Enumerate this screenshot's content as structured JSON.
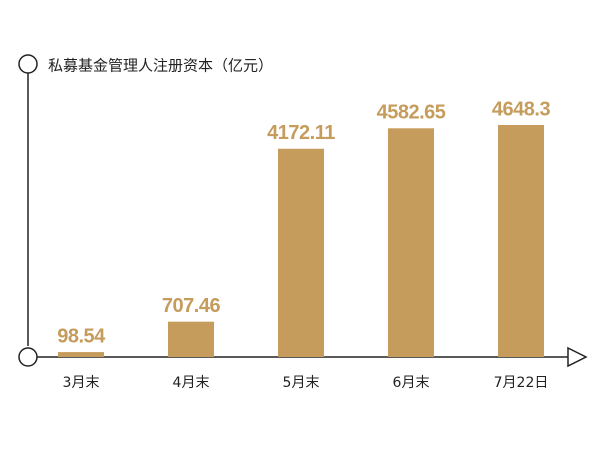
{
  "chart_data": {
    "type": "bar",
    "title": "私募基金管理人注册资本（亿元）",
    "categories": [
      "3月末",
      "4月末",
      "5月末",
      "6月末",
      "7月22日"
    ],
    "values": [
      98.54,
      707.46,
      4172.11,
      4582.65,
      4648.3
    ],
    "color": "#c69c5d"
  }
}
